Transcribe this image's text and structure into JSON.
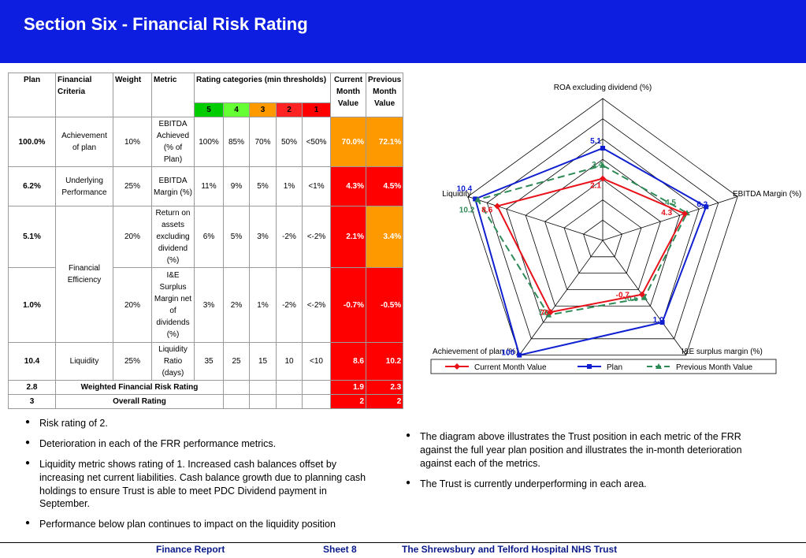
{
  "title": "Section Six - Financial Risk Rating",
  "table": {
    "headers": {
      "plan": "Plan",
      "criteria": "Financial Criteria",
      "weight": "Weight",
      "metric": "Metric",
      "rating_categories": "Rating categories (min thresholds)",
      "current": "Current Month Value",
      "previous": "Previous Month Value"
    },
    "ratings": [
      "5",
      "4",
      "3",
      "2",
      "1"
    ],
    "rows": [
      {
        "plan": "100.0%",
        "criteria": "Achievement of plan",
        "weight": "10%",
        "metric": "EBITDA Achieved (% of Plan)",
        "t5": "100%",
        "t4": "85%",
        "t3": "70%",
        "t2": "50%",
        "t1": "<50%",
        "current": "70.0%",
        "previous": "72.1%"
      },
      {
        "plan": "6.2%",
        "criteria": "Underlying Performance",
        "weight": "25%",
        "metric": "EBITDA Margin (%)",
        "t5": "11%",
        "t4": "9%",
        "t3": "5%",
        "t2": "1%",
        "t1": "<1%",
        "current": "4.3%",
        "previous": "4.5%"
      },
      {
        "plan": "5.1%",
        "criteria": "Financial Efficiency",
        "weight": "20%",
        "metric": "Return on assets excluding dividend (%)",
        "t5": "6%",
        "t4": "5%",
        "t3": "3%",
        "t2": "-2%",
        "t1": "<-2%",
        "current": "2.1%",
        "previous": "3.4%"
      },
      {
        "plan": "1.0%",
        "criteria": "",
        "weight": "20%",
        "metric": "I&E Surplus Margin net of dividends (%)",
        "t5": "3%",
        "t4": "2%",
        "t3": "1%",
        "t2": "-2%",
        "t1": "<-2%",
        "current": "-0.7%",
        "previous": "-0.5%"
      },
      {
        "plan": "10.4",
        "criteria": "Liquidity",
        "weight": "25%",
        "metric": "Liquidity Ratio (days)",
        "t5": "35",
        "t4": "25",
        "t3": "15",
        "t2": "10",
        "t1": "<10",
        "current": "8.6",
        "previous": "10.2"
      }
    ],
    "weighted": {
      "plan": "2.8",
      "label": "Weighted Financial Risk Rating",
      "current": "1.9",
      "previous": "2.3"
    },
    "overall": {
      "plan": "3",
      "label": "Overall Rating",
      "current": "2",
      "previous": "2"
    }
  },
  "chart_data": {
    "type": "radar",
    "axes": [
      "ROA excluding dividend (%)",
      "EBITDA Margin (%)",
      "I&E surplus margin (%)",
      "Achievement of plan (%)",
      "Liquidity"
    ],
    "rings": 7,
    "series": [
      {
        "name": "Current Month Value",
        "color": "#e8121b",
        "values": [
          2.1,
          4.3,
          -0.7,
          70,
          8.6
        ],
        "labels": [
          "2.1",
          "4.3",
          "-0.7",
          "70",
          "8.6"
        ]
      },
      {
        "name": "Plan",
        "color": "#1020d0",
        "values": [
          5.1,
          6.2,
          1.0,
          100,
          10.4
        ],
        "labels": [
          "5.1",
          "6.2",
          "1.0",
          "100",
          "10.4"
        ]
      },
      {
        "name": "Previous Month Value",
        "color": "#2e8b57",
        "values": [
          3.4,
          4.5,
          -0.5,
          72,
          10.2
        ],
        "labels": [
          "3.4",
          "4.5",
          "-0.5",
          "72",
          "10.2"
        ]
      }
    ]
  },
  "bullets_left": [
    "Risk rating of 2.",
    "Deterioration in each of  the FRR performance metrics.",
    "Liquidity metric shows rating of 1. Increased cash balances offset by increasing net current liabilities. Cash balance growth due to planning cash holdings to ensure Trust is able to meet PDC Dividend payment in September.",
    "Performance below plan continues to impact on the liquidity position"
  ],
  "bullets_right": [
    "The diagram above illustrates the Trust position in each metric of the FRR against the full year plan position and illustrates the in-month deterioration against each of the metrics.",
    "The Trust is currently underperforming in each area."
  ],
  "footer": {
    "left": "Finance Report",
    "middle": "Sheet  8",
    "right": "The Shrewsbury and Telford Hospital NHS Trust"
  }
}
